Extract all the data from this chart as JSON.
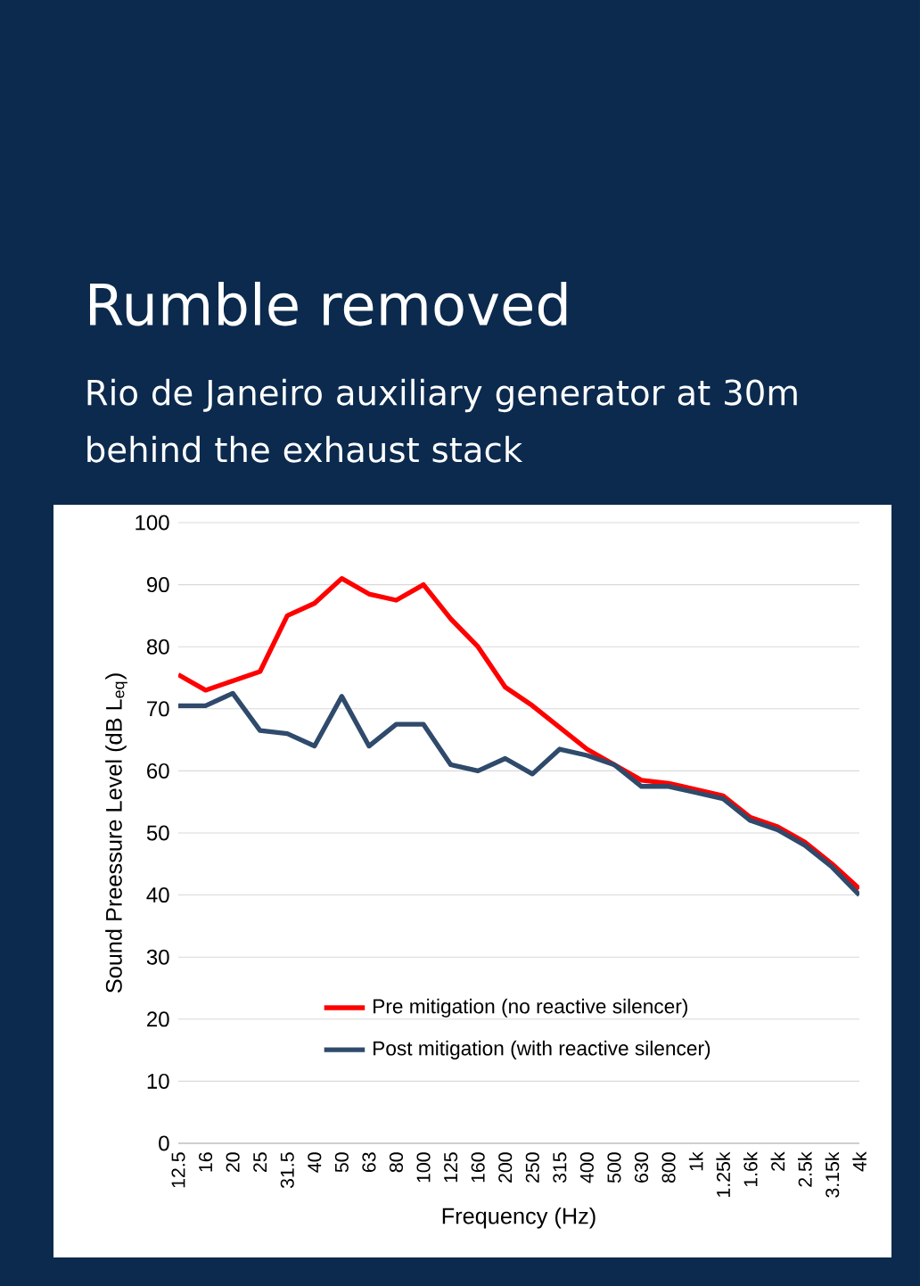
{
  "chart_data": {
    "type": "line",
    "title": "Rumble removed",
    "subtitle": "Rio de Janeiro auxiliary generator at 30m behind the exhaust stack",
    "xlabel": "Frequency (Hz)",
    "ylabel": "Sound Preessure Level (dB L$_{eq}$)",
    "categories": [
      "12.5",
      "16",
      "20",
      "25",
      "31.5",
      "40",
      "50",
      "63",
      "80",
      "100",
      "125",
      "160",
      "200",
      "250",
      "315",
      "400",
      "500",
      "630",
      "800",
      "1k",
      "1.25k",
      "1.6k",
      "2k",
      "2.5k",
      "3.15k",
      "4k"
    ],
    "series": [
      {
        "name": "Pre mitigation (no reactive silencer)",
        "color": "#ff0000",
        "values": [
          75.5,
          73,
          74.5,
          76,
          85,
          87,
          91,
          88.5,
          87.5,
          90,
          84.5,
          80,
          73.5,
          70.5,
          67,
          63.5,
          61,
          58.5,
          58,
          57,
          56,
          52.5,
          51,
          48.5,
          45,
          41
        ]
      },
      {
        "name": "Post mitigation (with reactive silencer)",
        "color": "#2f4a6b",
        "values": [
          70.5,
          70.5,
          72.5,
          66.5,
          66,
          64,
          72,
          64,
          67.5,
          67.5,
          61,
          60,
          62,
          59.5,
          63.5,
          62.5,
          61,
          57.5,
          57.5,
          56.5,
          55.5,
          52,
          50.5,
          48,
          44.5,
          40
        ]
      }
    ],
    "ylim": [
      0,
      100
    ],
    "yticks": [
      0,
      10,
      20,
      30,
      40,
      50,
      60,
      70,
      80,
      90,
      100
    ],
    "grid": "y",
    "legend": "bottom"
  }
}
